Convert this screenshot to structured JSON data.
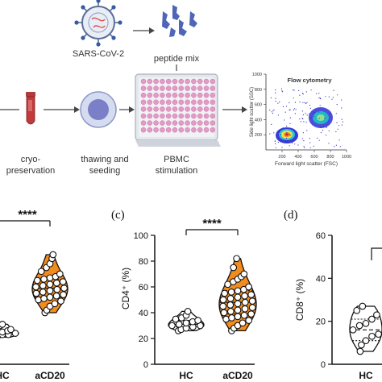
{
  "workflow": {
    "virus_label": "SARS-CoV-2",
    "peptide_label": "peptide mix",
    "step_labels": [
      [
        "cryo-",
        "preservation"
      ],
      [
        "thawing and",
        "seeding"
      ],
      [
        "PBMC",
        "stimulation"
      ]
    ],
    "flow": {
      "title": "Flow cytometry",
      "xlabel": "Forward light scatter (FSC)",
      "ylabel": "Side light scatter (SSC)",
      "xticks": [
        "200",
        "400",
        "600",
        "800",
        "1000"
      ],
      "yticks": [
        "200",
        "400",
        "600",
        "800",
        "1000"
      ]
    }
  },
  "panels": {
    "b": {
      "significance": "****",
      "categories": [
        "HC",
        "aCD20"
      ]
    },
    "c": {
      "letter": "(c)",
      "significance": "****"
    },
    "d": {
      "letter": "(d)"
    }
  },
  "chart_data": [
    {
      "type": "scatter",
      "panel": "b",
      "categories": [
        "HC",
        "aCD20"
      ],
      "significance": "****",
      "series": [
        {
          "values": [
            21,
            22,
            23,
            23,
            24,
            24,
            25,
            25,
            26,
            27,
            28,
            30,
            31
          ]
        },
        {
          "values": [
            40,
            42,
            45,
            47,
            49,
            50,
            51,
            52,
            53,
            54,
            55,
            56,
            57,
            58,
            59,
            60,
            61,
            62,
            63,
            64,
            65,
            66,
            67,
            68,
            70,
            72,
            75,
            78,
            82,
            85
          ]
        }
      ]
    },
    {
      "type": "scatter",
      "panel": "c",
      "ylabel": "CD4⁺ (%)",
      "ylim": [
        0,
        100
      ],
      "yticks": [
        0,
        20,
        40,
        60,
        80,
        100
      ],
      "categories": [
        "HC",
        "aCD20"
      ],
      "significance": "****",
      "series": [
        {
          "values": [
            26,
            27,
            28,
            29,
            30,
            30,
            31,
            32,
            33,
            34,
            35,
            36,
            38,
            41
          ]
        },
        {
          "values": [
            26,
            28,
            30,
            32,
            34,
            35,
            36,
            37,
            38,
            39,
            40,
            41,
            42,
            43,
            44,
            45,
            46,
            47,
            48,
            49,
            50,
            51,
            52,
            53,
            54,
            55,
            56,
            57,
            58,
            60,
            62,
            64,
            66,
            68,
            70,
            75,
            82
          ]
        }
      ]
    },
    {
      "type": "scatter",
      "panel": "d",
      "ylabel": "CD8⁺ (%)",
      "ylim": [
        0,
        60
      ],
      "yticks": [
        0,
        20,
        40,
        60
      ],
      "categories": [
        "HC"
      ],
      "series": [
        {
          "values": [
            6,
            9,
            11,
            13,
            14,
            16,
            18,
            19,
            21,
            23,
            25,
            27
          ]
        }
      ]
    }
  ]
}
